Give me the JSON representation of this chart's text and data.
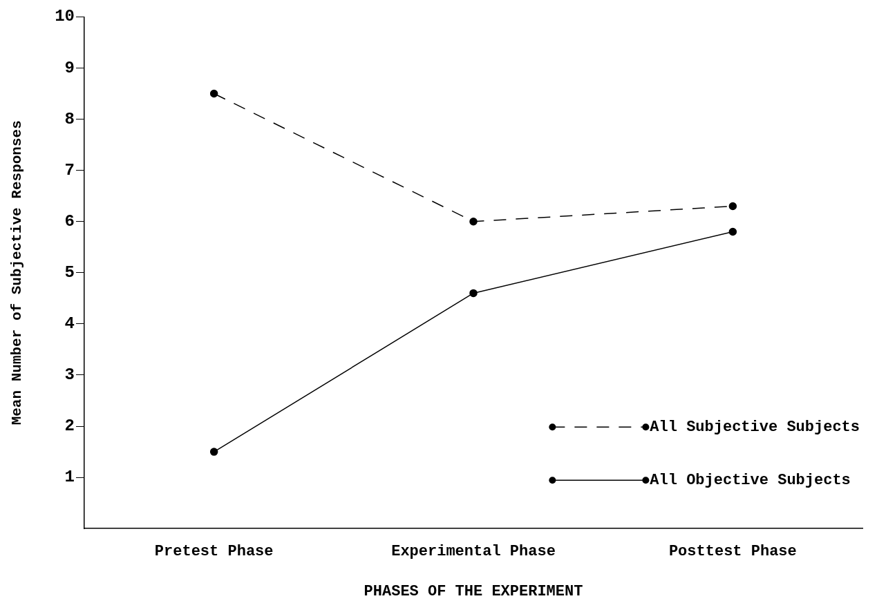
{
  "chart_data": {
    "type": "line",
    "xlabel": "PHASES OF THE EXPERIMENT",
    "ylabel": "Mean Number of Subjective Responses",
    "categories": [
      "Pretest Phase",
      "Experimental Phase",
      "Posttest Phase"
    ],
    "series": [
      {
        "name": "All Subjective Subjects",
        "color": "#000000",
        "line_style": "dashed",
        "values": [
          8.5,
          6.0,
          6.3
        ]
      },
      {
        "name": "All Objective Subjects",
        "color": "#000000",
        "line_style": "solid",
        "values": [
          1.5,
          4.6,
          5.8
        ]
      }
    ],
    "ylim": [
      0,
      10
    ],
    "yticks": [
      1,
      2,
      3,
      4,
      5,
      6,
      7,
      8,
      9,
      10
    ],
    "grid": false,
    "legend": "bottom right",
    "marker": "circle"
  }
}
